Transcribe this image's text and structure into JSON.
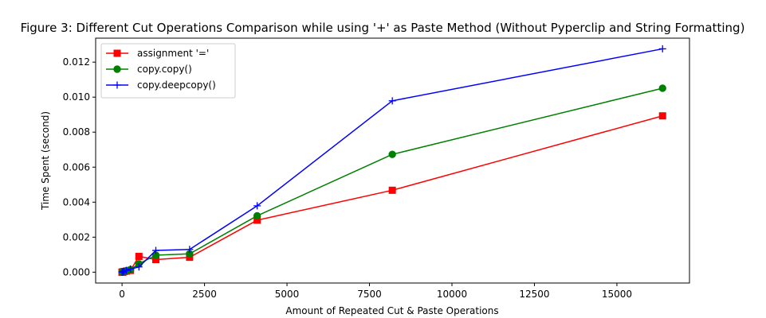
{
  "chart_data": {
    "type": "line",
    "title": "Figure 3: Different Cut Operations Comparison while using '+' as Paste Method (Without Pyperclip and String Formatting)",
    "xlabel": "Amount of Repeated Cut & Paste Operations",
    "ylabel": "Time Spent (second)",
    "xlim": [
      -800,
      17200
    ],
    "ylim": [
      -0.00062,
      0.01337
    ],
    "xticks": [
      0,
      2500,
      5000,
      7500,
      10000,
      12500,
      15000
    ],
    "xtick_labels": [
      "0",
      "2500",
      "5000",
      "7500",
      "10000",
      "12500",
      "15000"
    ],
    "yticks": [
      0,
      0.002,
      0.004,
      0.006,
      0.008,
      0.01,
      0.012
    ],
    "ytick_labels": [
      "0.000",
      "0.002",
      "0.004",
      "0.006",
      "0.008",
      "0.010",
      "0.012"
    ],
    "grid": false,
    "legend_position": "top-left",
    "x": [
      1,
      2,
      4,
      8,
      16,
      32,
      64,
      128,
      256,
      512,
      1024,
      2048,
      4096,
      8192,
      16384
    ],
    "series": [
      {
        "name": "assignment '='",
        "color": "#ff0000",
        "marker": "square",
        "values": [
          0.0,
          0.0,
          0.0,
          0.0,
          0.0,
          2e-05,
          4e-05,
          6e-05,
          0.0001,
          0.0009,
          0.00072,
          0.00085,
          0.00297,
          0.00468,
          0.00893
        ]
      },
      {
        "name": "copy.copy()",
        "color": "#008000",
        "marker": "circle",
        "values": [
          0.0,
          0.0,
          0.0,
          0.0,
          0.0,
          2e-05,
          4e-05,
          8e-05,
          0.00015,
          0.00048,
          0.00097,
          0.00105,
          0.00322,
          0.00673,
          0.01051
        ]
      },
      {
        "name": "copy.deepcopy()",
        "color": "#0000ff",
        "marker": "plus",
        "values": [
          0.0,
          0.0,
          0.0,
          0.0,
          0.0,
          3e-05,
          6e-05,
          0.0001,
          0.00018,
          0.0003,
          0.00124,
          0.0013,
          0.00379,
          0.00979,
          0.01276
        ]
      }
    ]
  }
}
